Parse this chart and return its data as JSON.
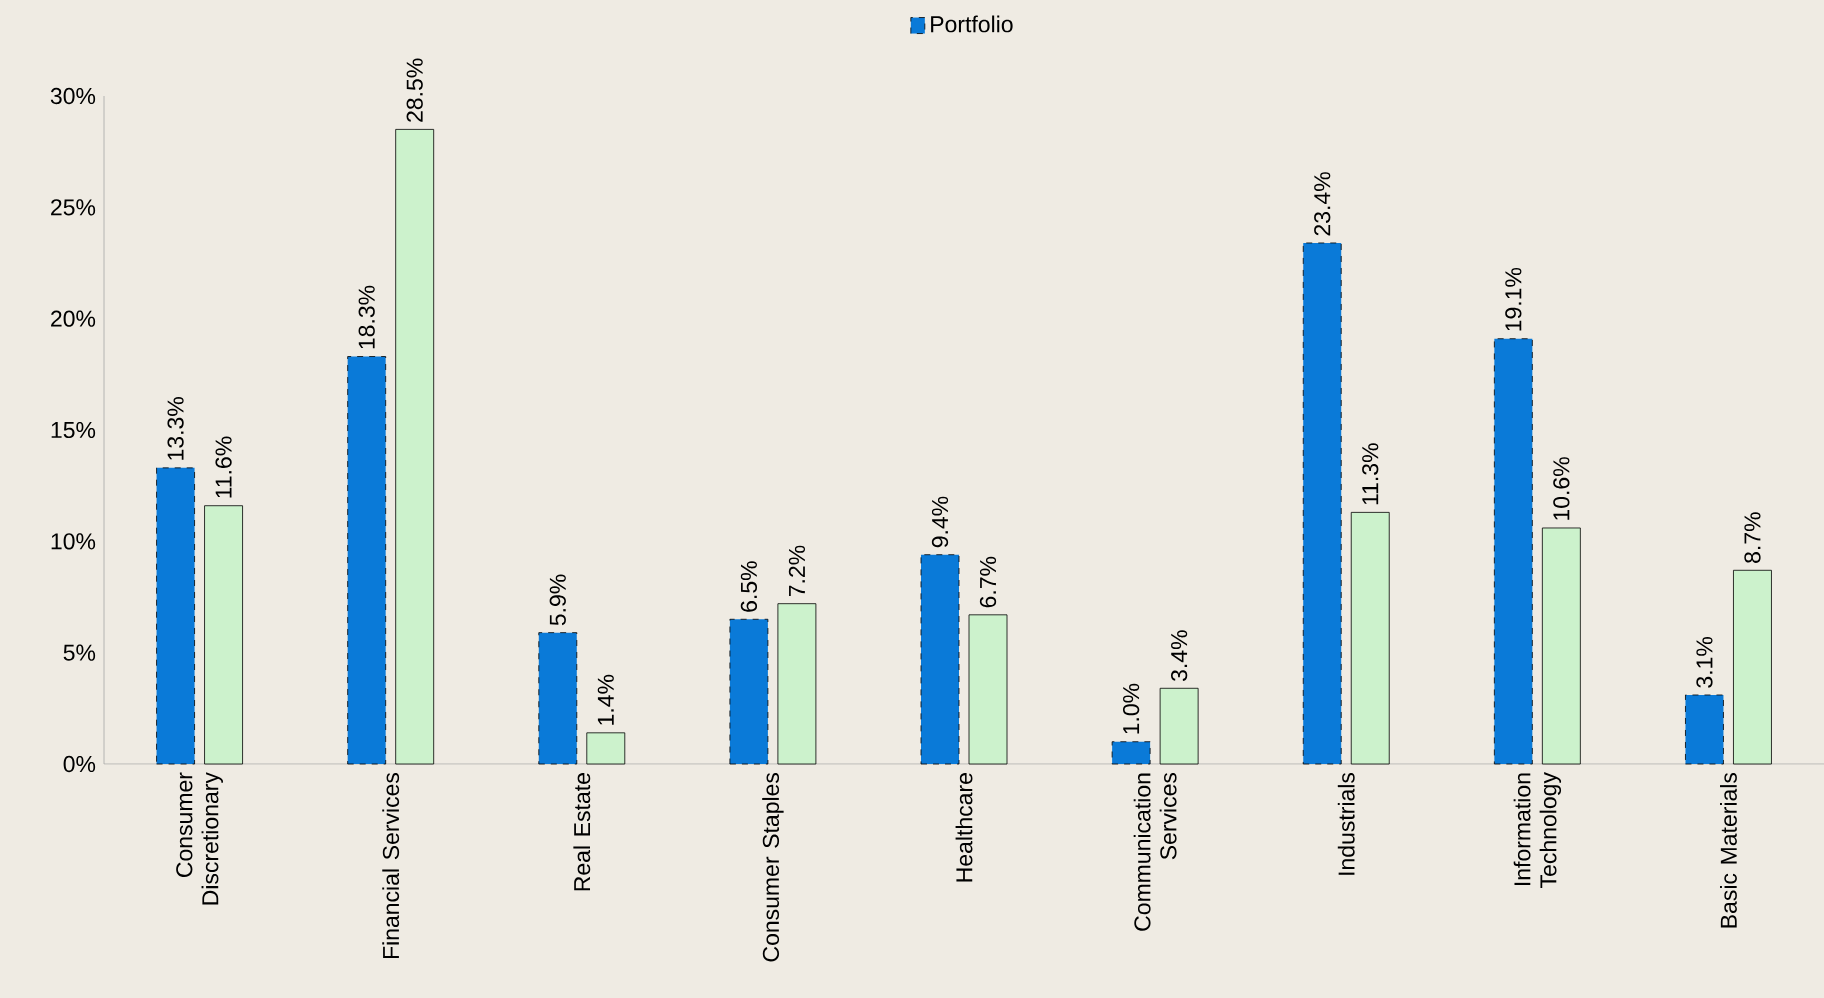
{
  "chart_data": {
    "type": "bar",
    "categories": [
      "Consumer Discretionary",
      "Financial Services",
      "Real Estate",
      "Consumer Staples",
      "Healthcare",
      "Communication Services",
      "Industrials",
      "Information Technology",
      "Basic Materials"
    ],
    "series": [
      {
        "name": "Portfolio",
        "color": "#0a7ad8",
        "values": [
          13.3,
          18.3,
          5.9,
          6.5,
          9.4,
          1.0,
          23.4,
          19.1,
          3.1
        ],
        "value_labels": [
          "13.3%",
          "18.3%",
          "5.9%",
          "6.5%",
          "9.4%",
          "1.0%",
          "23.4%",
          "19.1%",
          "3.1%"
        ]
      },
      {
        "color": "#ccf2cc",
        "values": [
          11.6,
          28.5,
          1.4,
          7.2,
          6.7,
          3.4,
          11.3,
          10.6,
          8.7
        ],
        "value_labels": [
          "11.6%",
          "28.5%",
          "1.4%",
          "7.2%",
          "6.7%",
          "3.4%",
          "11.3%",
          "10.6%",
          "8.7%"
        ]
      }
    ],
    "ylim": [
      0,
      30
    ],
    "yticks": [
      {
        "value": 0,
        "label": "0%"
      },
      {
        "value": 5,
        "label": "5%"
      },
      {
        "value": 10,
        "label": "10%"
      },
      {
        "value": 15,
        "label": "15%"
      },
      {
        "value": 20,
        "label": "20%"
      },
      {
        "value": 25,
        "label": "25%"
      },
      {
        "value": 30,
        "label": "30%"
      }
    ],
    "grid": false,
    "legend": "top"
  }
}
